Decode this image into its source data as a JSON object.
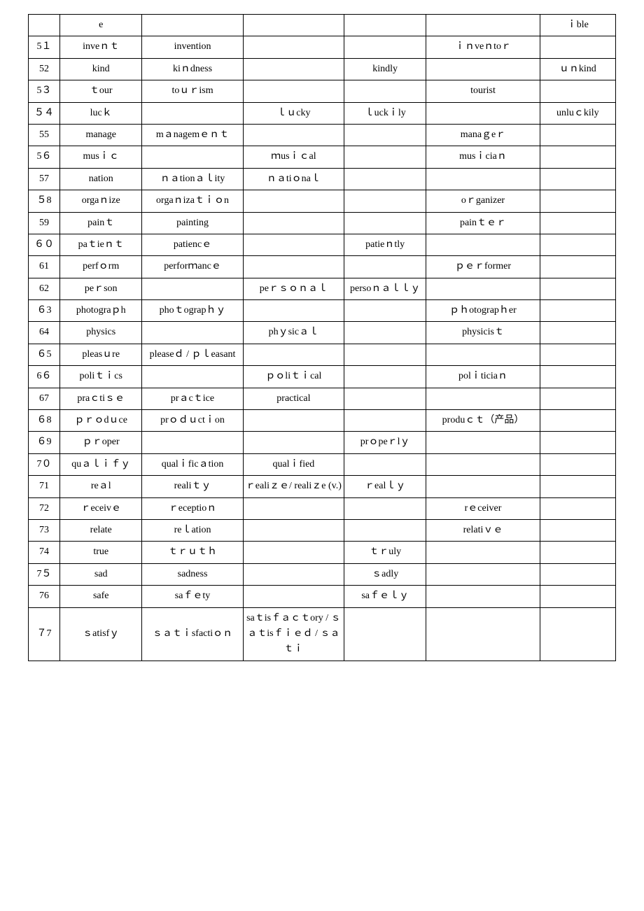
{
  "table": {
    "columns": [
      "num",
      "c1",
      "c2",
      "c3",
      "c4",
      "c5",
      "c6"
    ],
    "rows": [
      {
        "num": "",
        "c1": "e",
        "c2": "",
        "c3": "",
        "c4": "",
        "c5": "",
        "c6": "ｉble"
      },
      {
        "num": "5１",
        "c1": "inveｎｔ",
        "c2": "invention",
        "c3": "",
        "c4": "",
        "c5": "ｉｎveｎtoｒ",
        "c6": ""
      },
      {
        "num": "52",
        "c1": "kind",
        "c2": "kiｎdness",
        "c3": "",
        "c4": "kindly",
        "c5": "",
        "c6": "ｕｎkind"
      },
      {
        "num": "5３",
        "c1": "ｔour",
        "c2": "toｕｒism",
        "c3": "",
        "c4": "",
        "c5": "tourist",
        "c6": ""
      },
      {
        "num": "５４",
        "c1": "lucｋ",
        "c2": "",
        "c3": "ｌｕcky",
        "c4": "ｌuckｉly",
        "c5": "",
        "c6": "unluｃkily"
      },
      {
        "num": "55",
        "c1": "manage",
        "c2": "mａnagemｅｎｔ",
        "c3": "",
        "c4": "",
        "c5": "manaｇeｒ",
        "c6": ""
      },
      {
        "num": "5６",
        "c1": "musｉｃ",
        "c2": "",
        "c3": "ｍusｉｃal",
        "c4": "",
        "c5": "musｉciaｎ",
        "c6": ""
      },
      {
        "num": "57",
        "c1": "nation",
        "c2": "ｎａtionａｌity",
        "c3": "ｎａtiｏnaｌ",
        "c4": "",
        "c5": "",
        "c6": ""
      },
      {
        "num": "５8",
        "c1": "orgaｎize",
        "c2": "orgaｎizaｔｉｏn",
        "c3": "",
        "c4": "",
        "c5": "oｒganizer",
        "c6": ""
      },
      {
        "num": "59",
        "c1": "painｔ",
        "c2": "painting",
        "c3": "",
        "c4": "",
        "c5": "painｔｅｒ",
        "c6": ""
      },
      {
        "num": "６０",
        "c1": "paｔieｎｔ",
        "c2": "patiencｅ",
        "c3": "",
        "c4": "patieｎtly",
        "c5": "",
        "c6": ""
      },
      {
        "num": "61",
        "c1": "perfｏrm",
        "c2": "perforｍancｅ",
        "c3": "",
        "c4": "",
        "c5": "ｐｅｒformer",
        "c6": ""
      },
      {
        "num": "62",
        "c1": "peｒson",
        "c2": "",
        "c3": "peｒｓｏｎａｌ",
        "c4": "persoｎａｌｌｙ",
        "c5": "",
        "c6": ""
      },
      {
        "num": "６3",
        "c1": "photograｐh",
        "c2": "phoｔograpｈｙ",
        "c3": "",
        "c4": "",
        "c5": "ｐｈotograpｈer",
        "c6": ""
      },
      {
        "num": "64",
        "c1": "physics",
        "c2": "",
        "c3": "phｙsicａｌ",
        "c4": "",
        "c5": "physicisｔ",
        "c6": ""
      },
      {
        "num": "６5",
        "c1": "pleasｕre",
        "c2": "pleaseｄ / ｐｌeasant",
        "c3": "",
        "c4": "",
        "c5": "",
        "c6": ""
      },
      {
        "num": "6６",
        "c1": "poliｔｉcs",
        "c2": "",
        "c3": "ｐｏliｔｉcal",
        "c4": "",
        "c5": "polｉticiaｎ",
        "c6": ""
      },
      {
        "num": "67",
        "c1": "praｃtiｓｅ",
        "c2": "prａcｔice",
        "c3": "practical",
        "c4": "",
        "c5": "",
        "c6": ""
      },
      {
        "num": "６8",
        "c1": "ｐｒｏdｕce",
        "c2": "prｏｄｕctｉon",
        "c3": "",
        "c4": "",
        "c5": "produｃｔ（产品）",
        "c6": ""
      },
      {
        "num": "６9",
        "c1": "ｐｒoper",
        "c2": "",
        "c3": "",
        "c4": "prｏpeｒlｙ",
        "c5": "",
        "c6": ""
      },
      {
        "num": "7０",
        "c1": "quａｌｉｆｙ",
        "c2": "qualｉficａtion",
        "c3": "qualｉfied",
        "c4": "",
        "c5": "",
        "c6": ""
      },
      {
        "num": "71",
        "c1": "reａl",
        "c2": "realiｔｙ",
        "c3": "ｒealiｚｅ/ realiｚe (v.)",
        "c4": "ｒealｌｙ",
        "c5": "",
        "c6": ""
      },
      {
        "num": "72",
        "c1": "ｒeceivｅ",
        "c2": "ｒeceptioｎ",
        "c3": "",
        "c4": "",
        "c5": "rｅceiver",
        "c6": ""
      },
      {
        "num": "73",
        "c1": "relate",
        "c2": "reｌation",
        "c3": "",
        "c4": "",
        "c5": "relatiｖｅ",
        "c6": ""
      },
      {
        "num": "74",
        "c1": "true",
        "c2": "ｔｒｕｔｈ",
        "c3": "",
        "c4": "ｔｒuly",
        "c5": "",
        "c6": ""
      },
      {
        "num": "7５",
        "c1": "sad",
        "c2": "sadness",
        "c3": "",
        "c4": "ｓadly",
        "c5": "",
        "c6": ""
      },
      {
        "num": "76",
        "c1": "safe",
        "c2": "saｆｅty",
        "c3": "",
        "c4": "saｆｅｌｙ",
        "c5": "",
        "c6": ""
      },
      {
        "num": "７7",
        "c1": "ｓatisfｙ",
        "c2": "ｓａｔｉsfactiｏｎ",
        "c3": "saｔisｆａｃｔory / ｓａｔisｆｉｅｄ / ｓａｔｉ",
        "c4": "",
        "c5": "",
        "c6": ""
      }
    ]
  }
}
